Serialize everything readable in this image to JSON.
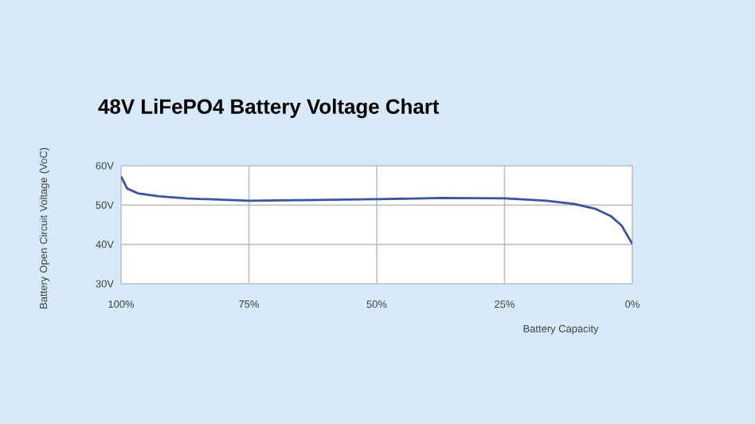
{
  "chart_data": {
    "type": "line",
    "title": "48V LiFePO4 Battery Voltage Chart",
    "xlabel": "Battery Capacity",
    "ylabel": "Battery Open Circuit Voltage (VoC)",
    "x": [
      100,
      98.8,
      96.7,
      92.5,
      87.3,
      75,
      61.3,
      50,
      37.5,
      24.9,
      16.8,
      11.4,
      7.3,
      4.2,
      2.1,
      0
    ],
    "series": [
      {
        "color": "#3a55a0",
        "values": [
          57.3,
          54.2,
          53.0,
          52.2,
          51.7,
          51.1,
          51.3,
          51.5,
          51.8,
          51.7,
          51.1,
          50.3,
          49.1,
          47.2,
          44.8,
          40.1
        ]
      }
    ],
    "xlim": [
      100,
      0
    ],
    "xticks": [
      {
        "value": 100,
        "label": "100%"
      },
      {
        "value": 75,
        "label": "75%"
      },
      {
        "value": 50,
        "label": "50%"
      },
      {
        "value": 25,
        "label": "25%"
      },
      {
        "value": 0,
        "label": "0%"
      }
    ],
    "ylim": [
      30,
      60
    ],
    "yticks": [
      {
        "value": 30,
        "label": "30V"
      },
      {
        "value": 40,
        "label": "40V"
      },
      {
        "value": 50,
        "label": "50V"
      },
      {
        "value": 60,
        "label": "60V"
      }
    ],
    "grid": true,
    "marker": "none",
    "line_style": "solid"
  }
}
